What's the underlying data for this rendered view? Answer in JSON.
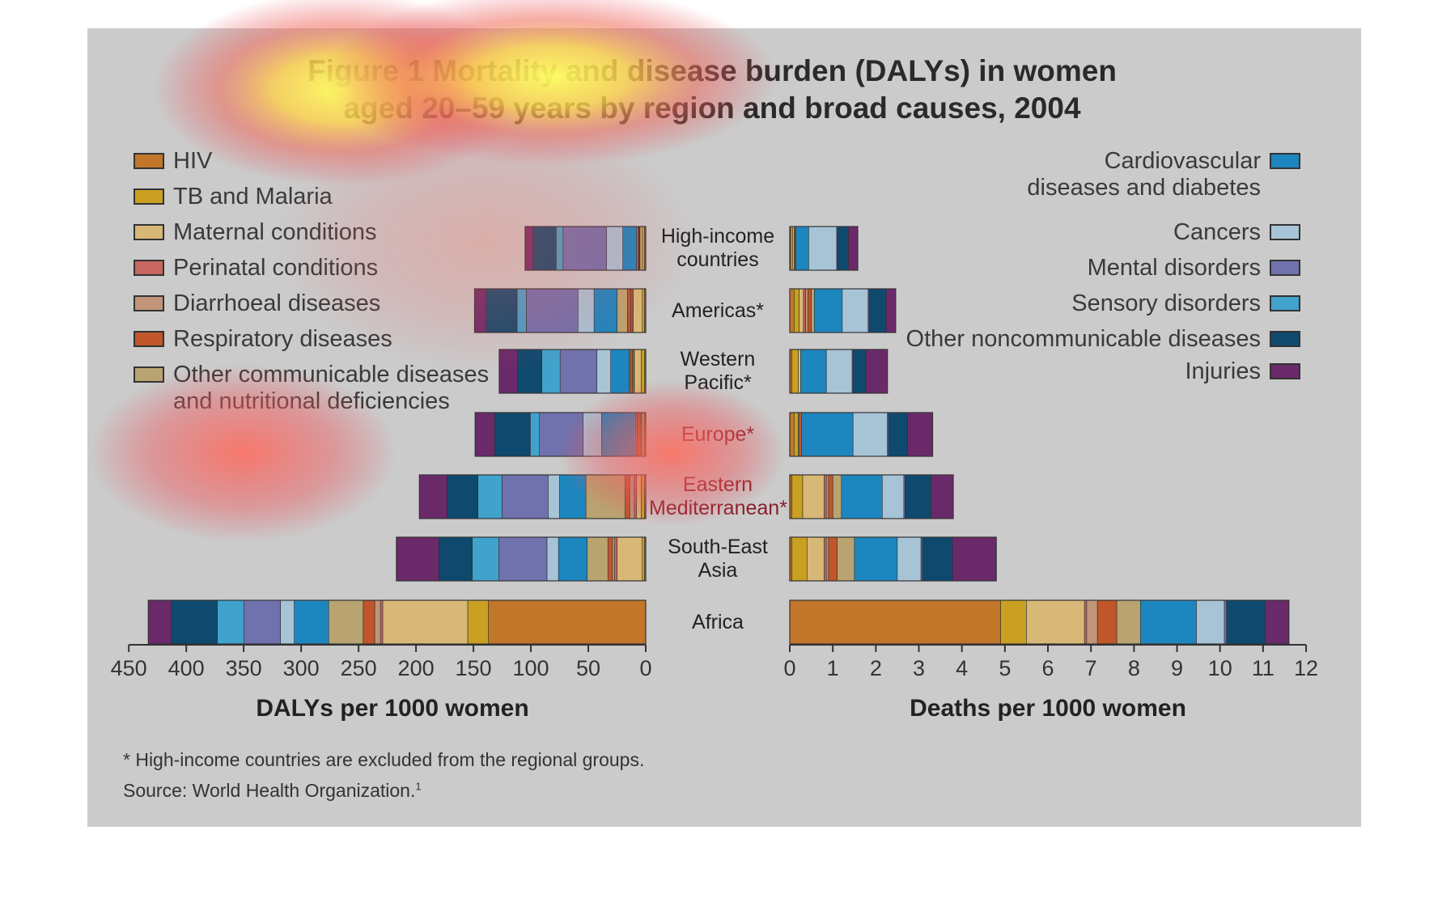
{
  "chart_data": [
    {
      "type": "bar",
      "orientation": "horizontal-stacked",
      "title": "Figure 1 Mortality and disease burden (DALYs) in women aged 20–59 years by region and broad causes, 2004",
      "xlabel": "DALYs per 1000 women",
      "xlim": [
        0,
        450
      ],
      "xticks": [
        "450",
        "400",
        "350",
        "300",
        "250",
        "200",
        "150",
        "100",
        "50",
        "0"
      ],
      "direction": "reversed",
      "categories": [
        "High-income countries",
        "Americas*",
        "Western Pacific*",
        "Europe*",
        "Eastern Mediterranean*",
        "South-East Asia",
        "Africa"
      ],
      "series": [
        {
          "name": "HIV",
          "values": [
            1,
            1,
            1,
            1,
            1,
            1,
            137
          ]
        },
        {
          "name": "TB and Malaria",
          "values": [
            2,
            2,
            3,
            2,
            3,
            2,
            18
          ]
        },
        {
          "name": "Maternal conditions",
          "values": [
            2,
            8,
            6,
            1,
            4,
            22,
            74
          ]
        },
        {
          "name": "Perinatal conditions",
          "values": [
            0.5,
            1,
            0.5,
            0.5,
            2,
            2,
            2
          ]
        },
        {
          "name": "Diarrhoeal diseases",
          "values": [
            0.5,
            1,
            1,
            1,
            4,
            2,
            5
          ]
        },
        {
          "name": "Respiratory diseases",
          "values": [
            1,
            3,
            2,
            2,
            4,
            4,
            10
          ]
        },
        {
          "name": "Other communicable diseases and nutritional deficiencies",
          "values": [
            1,
            9,
            1,
            1,
            34,
            18,
            30
          ]
        },
        {
          "name": "Cardiovascular diseases and diabetes",
          "values": [
            12,
            20,
            16,
            30,
            23,
            25,
            30
          ]
        },
        {
          "name": "Cancers",
          "values": [
            14,
            14,
            12,
            16,
            10,
            10,
            12
          ]
        },
        {
          "name": "Mental disorders",
          "values": [
            38,
            45,
            32,
            38,
            40,
            42,
            32
          ]
        },
        {
          "name": "Sensory disorders",
          "values": [
            6,
            8,
            16,
            8,
            21,
            23,
            23
          ]
        },
        {
          "name": "Other noncommunicable diseases",
          "values": [
            20,
            27,
            21,
            31,
            27,
            29,
            40
          ]
        },
        {
          "name": "Injuries",
          "values": [
            7,
            10,
            16,
            17,
            24,
            37,
            20
          ]
        }
      ]
    },
    {
      "type": "bar",
      "orientation": "horizontal-stacked",
      "xlabel": "Deaths per 1000 women",
      "xlim": [
        0,
        12
      ],
      "xticks": [
        "0",
        "1",
        "2",
        "3",
        "4",
        "5",
        "6",
        "7",
        "8",
        "9",
        "10",
        "11",
        "12"
      ],
      "categories": [
        "High-income countries",
        "Americas*",
        "Western Pacific*",
        "Europe*",
        "Eastern Mediterranean*",
        "South-East Asia",
        "Africa"
      ],
      "series": [
        {
          "name": "HIV",
          "values": [
            0.02,
            0.1,
            0.05,
            0.1,
            0.05,
            0.05,
            4.9
          ]
        },
        {
          "name": "TB and Malaria",
          "values": [
            0.05,
            0.12,
            0.15,
            0.1,
            0.25,
            0.35,
            0.6
          ]
        },
        {
          "name": "Maternal conditions",
          "values": [
            0.03,
            0.1,
            0.05,
            0.02,
            0.5,
            0.4,
            1.35
          ]
        },
        {
          "name": "Perinatal conditions",
          "values": [
            0.0,
            0.05,
            0.0,
            0.0,
            0.05,
            0.05,
            0.05
          ]
        },
        {
          "name": "Diarrhoeal diseases",
          "values": [
            0.0,
            0.05,
            0.0,
            0.0,
            0.05,
            0.05,
            0.25
          ]
        },
        {
          "name": "Respiratory diseases",
          "values": [
            0.02,
            0.08,
            0.0,
            0.05,
            0.1,
            0.2,
            0.45
          ]
        },
        {
          "name": "Other communicable diseases and nutritional deficiencies",
          "values": [
            0.02,
            0.07,
            0.0,
            0.0,
            0.2,
            0.4,
            0.55
          ]
        },
        {
          "name": "Cardiovascular diseases and diabetes",
          "values": [
            0.3,
            0.65,
            0.6,
            1.2,
            0.95,
            1.0,
            1.3
          ]
        },
        {
          "name": "Cancers",
          "values": [
            0.65,
            0.6,
            0.6,
            0.8,
            0.5,
            0.55,
            0.65
          ]
        },
        {
          "name": "Mental disorders",
          "values": [
            0.02,
            0.02,
            0.02,
            0.02,
            0.03,
            0.03,
            0.05
          ]
        },
        {
          "name": "Sensory disorders",
          "values": [
            0.0,
            0.0,
            0.0,
            0.0,
            0.0,
            0.0,
            0.0
          ]
        },
        {
          "name": "Other noncommunicable diseases",
          "values": [
            0.25,
            0.4,
            0.3,
            0.45,
            0.6,
            0.7,
            0.9
          ]
        },
        {
          "name": "Injuries",
          "values": [
            0.22,
            0.22,
            0.5,
            0.58,
            0.52,
            1.02,
            0.55
          ]
        }
      ]
    }
  ],
  "title_lines": [
    "Figure 1 Mortality and disease burden (DALYs) in women",
    "aged 20–59 years by region and broad causes, 2004"
  ],
  "region_labels": [
    [
      "High-income",
      "countries"
    ],
    [
      "Americas*"
    ],
    [
      "Western",
      "Pacific*"
    ],
    [
      "Europe*"
    ],
    [
      "Eastern",
      "Mediterranean*"
    ],
    [
      "South-East",
      "Asia"
    ],
    [
      "Africa"
    ]
  ],
  "legend_left": [
    {
      "label": "HIV",
      "color": "#c1762a"
    },
    {
      "label": "TB and Malaria",
      "color": "#c9a021"
    },
    {
      "label": "Maternal conditions",
      "color": "#d8b877"
    },
    {
      "label": "Perinatal conditions",
      "color": "#c86660"
    },
    {
      "label": "Diarrhoeal diseases",
      "color": "#c0957a"
    },
    {
      "label": "Respiratory diseases",
      "color": "#c0562a"
    },
    {
      "label": "Other communicable diseases",
      "label2": "and nutritional deficiencies",
      "color": "#b9a471"
    }
  ],
  "legend_right": [
    {
      "label": "Cardiovascular",
      "label2": "diseases and diabetes",
      "color": "#1d86be"
    },
    {
      "label": "Cancers",
      "color": "#a6c4d6"
    },
    {
      "label": "Mental disorders",
      "color": "#6f72ad"
    },
    {
      "label": "Sensory disorders",
      "color": "#41a2cc"
    },
    {
      "label": "Other noncommunicable diseases",
      "color": "#0f4a6e"
    },
    {
      "label": "Injuries",
      "color": "#6a2a6a"
    }
  ],
  "footnote": "* High-income countries are excluded from the regional groups.",
  "source": "Source: World Health Organization.",
  "source_sup": "1"
}
